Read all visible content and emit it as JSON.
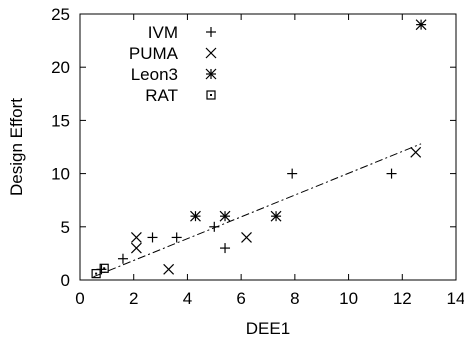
{
  "chart_data": {
    "type": "scatter",
    "xlabel": "DEE1",
    "ylabel": "Design Effort",
    "xlim": [
      0,
      14
    ],
    "ylim": [
      0,
      25
    ],
    "xticks": [
      "0",
      "2",
      "4",
      "6",
      "8",
      "10",
      "12",
      "14"
    ],
    "yticks": [
      "0",
      "5",
      "10",
      "15",
      "20",
      "25"
    ],
    "grid": false,
    "legend_position": "top-left",
    "series": [
      {
        "name": "IVM",
        "marker": "plus",
        "points": [
          [
            0.8,
            1
          ],
          [
            1.6,
            2
          ],
          [
            2.7,
            4
          ],
          [
            3.6,
            4
          ],
          [
            5.0,
            5
          ],
          [
            5.4,
            3
          ],
          [
            7.9,
            10
          ],
          [
            11.6,
            10
          ]
        ]
      },
      {
        "name": "PUMA",
        "marker": "cross",
        "points": [
          [
            2.1,
            4
          ],
          [
            2.1,
            3
          ],
          [
            3.3,
            1
          ],
          [
            6.2,
            4
          ],
          [
            12.5,
            12
          ]
        ]
      },
      {
        "name": "Leon3",
        "marker": "star",
        "points": [
          [
            4.3,
            6
          ],
          [
            5.4,
            6
          ],
          [
            7.3,
            6
          ],
          [
            12.7,
            24
          ]
        ]
      },
      {
        "name": "RAT",
        "marker": "square",
        "points": [
          [
            0.6,
            0.6
          ],
          [
            0.9,
            1.1
          ]
        ]
      }
    ],
    "fit_line": {
      "style": "dash-dot",
      "points": [
        [
          0.5,
          0.3
        ],
        [
          12.7,
          12.8
        ]
      ]
    }
  }
}
